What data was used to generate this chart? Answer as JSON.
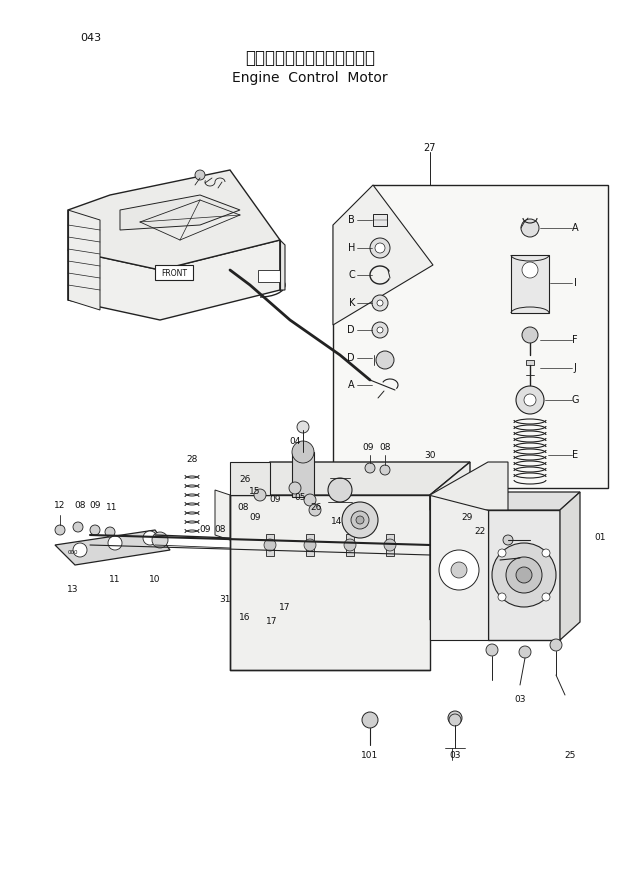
{
  "page_number": "043",
  "title_japanese": "エンジンコントロールモータ",
  "title_english": "Engine  Control  Motor",
  "bg": "#f5f5f0",
  "lc": "#222222",
  "tc": "#111111",
  "fig_w": 6.2,
  "fig_h": 8.73,
  "dpi": 100
}
